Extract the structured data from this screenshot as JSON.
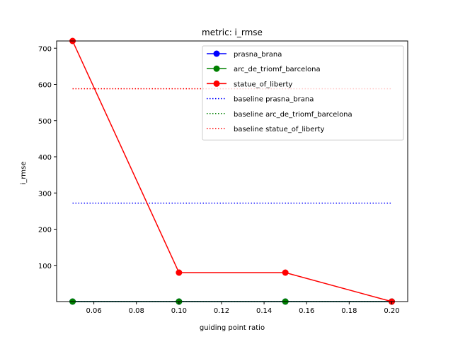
{
  "chart_data": {
    "type": "line",
    "title": "metric: i_rmse",
    "xlabel": "guiding point ratio",
    "ylabel": "i_rmse",
    "xlim": [
      0.0425,
      0.2075
    ],
    "ylim": [
      0,
      720
    ],
    "xticks": [
      0.06,
      0.08,
      0.1,
      0.12,
      0.14,
      0.16,
      0.18,
      0.2
    ],
    "xtick_labels": [
      "0.06",
      "0.08",
      "0.10",
      "0.12",
      "0.14",
      "0.16",
      "0.18",
      "0.20"
    ],
    "yticks": [
      100,
      200,
      300,
      400,
      500,
      600,
      700
    ],
    "ytick_labels": [
      "100",
      "200",
      "300",
      "400",
      "500",
      "600",
      "700"
    ],
    "x": [
      0.05,
      0.1,
      0.15,
      0.2
    ],
    "series": [
      {
        "name": "prasna_brana",
        "color": "#0000ff",
        "style": "solid-marker",
        "values": [
          0,
          0,
          0,
          0
        ]
      },
      {
        "name": "arc_de_triomf_barcelona",
        "color": "#008000",
        "style": "solid-marker",
        "values": [
          0,
          0,
          0,
          0
        ]
      },
      {
        "name": "statue_of_liberty",
        "color": "#ff0000",
        "style": "solid-marker",
        "values": [
          720,
          80,
          80,
          0
        ]
      }
    ],
    "baselines": [
      {
        "name": "baseline prasna_brana",
        "color": "#0000ff",
        "value": 272
      },
      {
        "name": "baseline arc_de_triomf_barcelona",
        "color": "#008000",
        "value": 0
      },
      {
        "name": "baseline statue_of_liberty",
        "color": "#ff0000",
        "value": 588
      }
    ],
    "legend_position": "top-right",
    "grid": false
  }
}
